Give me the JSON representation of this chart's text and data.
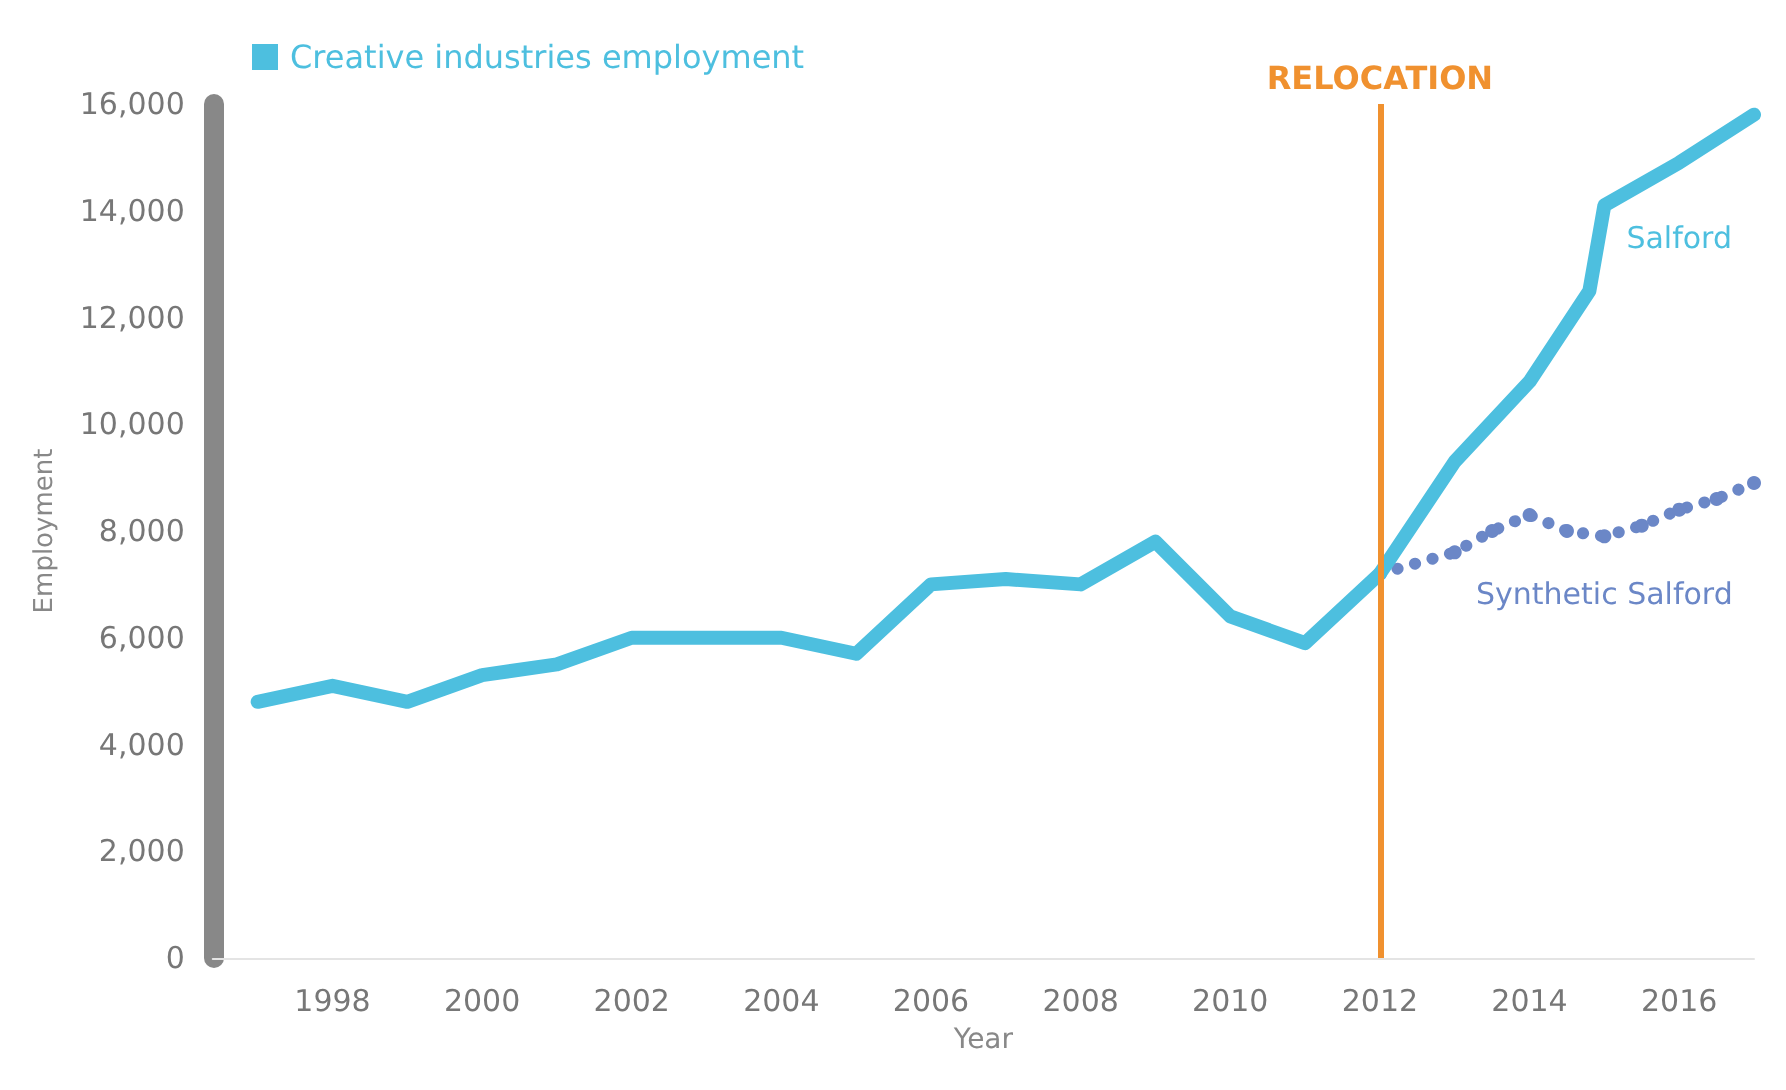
{
  "chart_data": {
    "type": "line",
    "xlabel": "Year",
    "ylabel": "Employment",
    "legend_title": "Creative industries employment",
    "grid": false,
    "xlim": [
      1996.4,
      2017
    ],
    "xticks": [
      1998,
      2000,
      2002,
      2004,
      2006,
      2008,
      2010,
      2012,
      2014,
      2016
    ],
    "ylim": [
      0,
      16000
    ],
    "yticks": [
      0,
      {
        "value": 2000,
        "label": "2,000"
      },
      {
        "value": 4000,
        "label": "4,000"
      },
      {
        "value": 6000,
        "label": "6,000"
      },
      {
        "value": 8000,
        "label": "8,000"
      },
      {
        "value": 10000,
        "label": "10,000"
      },
      {
        "value": 12000,
        "label": "12,000"
      },
      {
        "value": 14000,
        "label": "14,000"
      },
      {
        "value": 16000,
        "label": "16,000"
      }
    ],
    "series": [
      {
        "name": "Salford",
        "color": "#4dbfdf",
        "line_style": "solid",
        "x": [
          1997,
          1998,
          1999,
          2000,
          2001,
          2002,
          2003,
          2004,
          2005,
          2006,
          2007,
          2008,
          2009,
          2010,
          2011,
          2012,
          2013,
          2014,
          2014.8,
          2015,
          2016,
          2017
        ],
        "values": [
          4800,
          5100,
          4800,
          5300,
          5500,
          6000,
          6000,
          6000,
          5700,
          7000,
          7100,
          7000,
          7800,
          6400,
          5900,
          7200,
          9300,
          10800,
          12500,
          14100,
          14900,
          15800
        ]
      },
      {
        "name": "Synthetic Salford",
        "color": "#6b87c7",
        "line_style": "dotted",
        "marker": "circle",
        "x": [
          2012,
          2013,
          2013.5,
          2014,
          2014.5,
          2015,
          2015.5,
          2016,
          2016.5,
          2017
        ],
        "values": [
          7200,
          7600,
          8000,
          8300,
          8000,
          7900,
          8100,
          8400,
          8600,
          8900
        ]
      }
    ],
    "ref_lines": [
      {
        "axis": "x",
        "value": 2012,
        "label": "RELOCATION",
        "color": "#f0912f"
      }
    ]
  }
}
